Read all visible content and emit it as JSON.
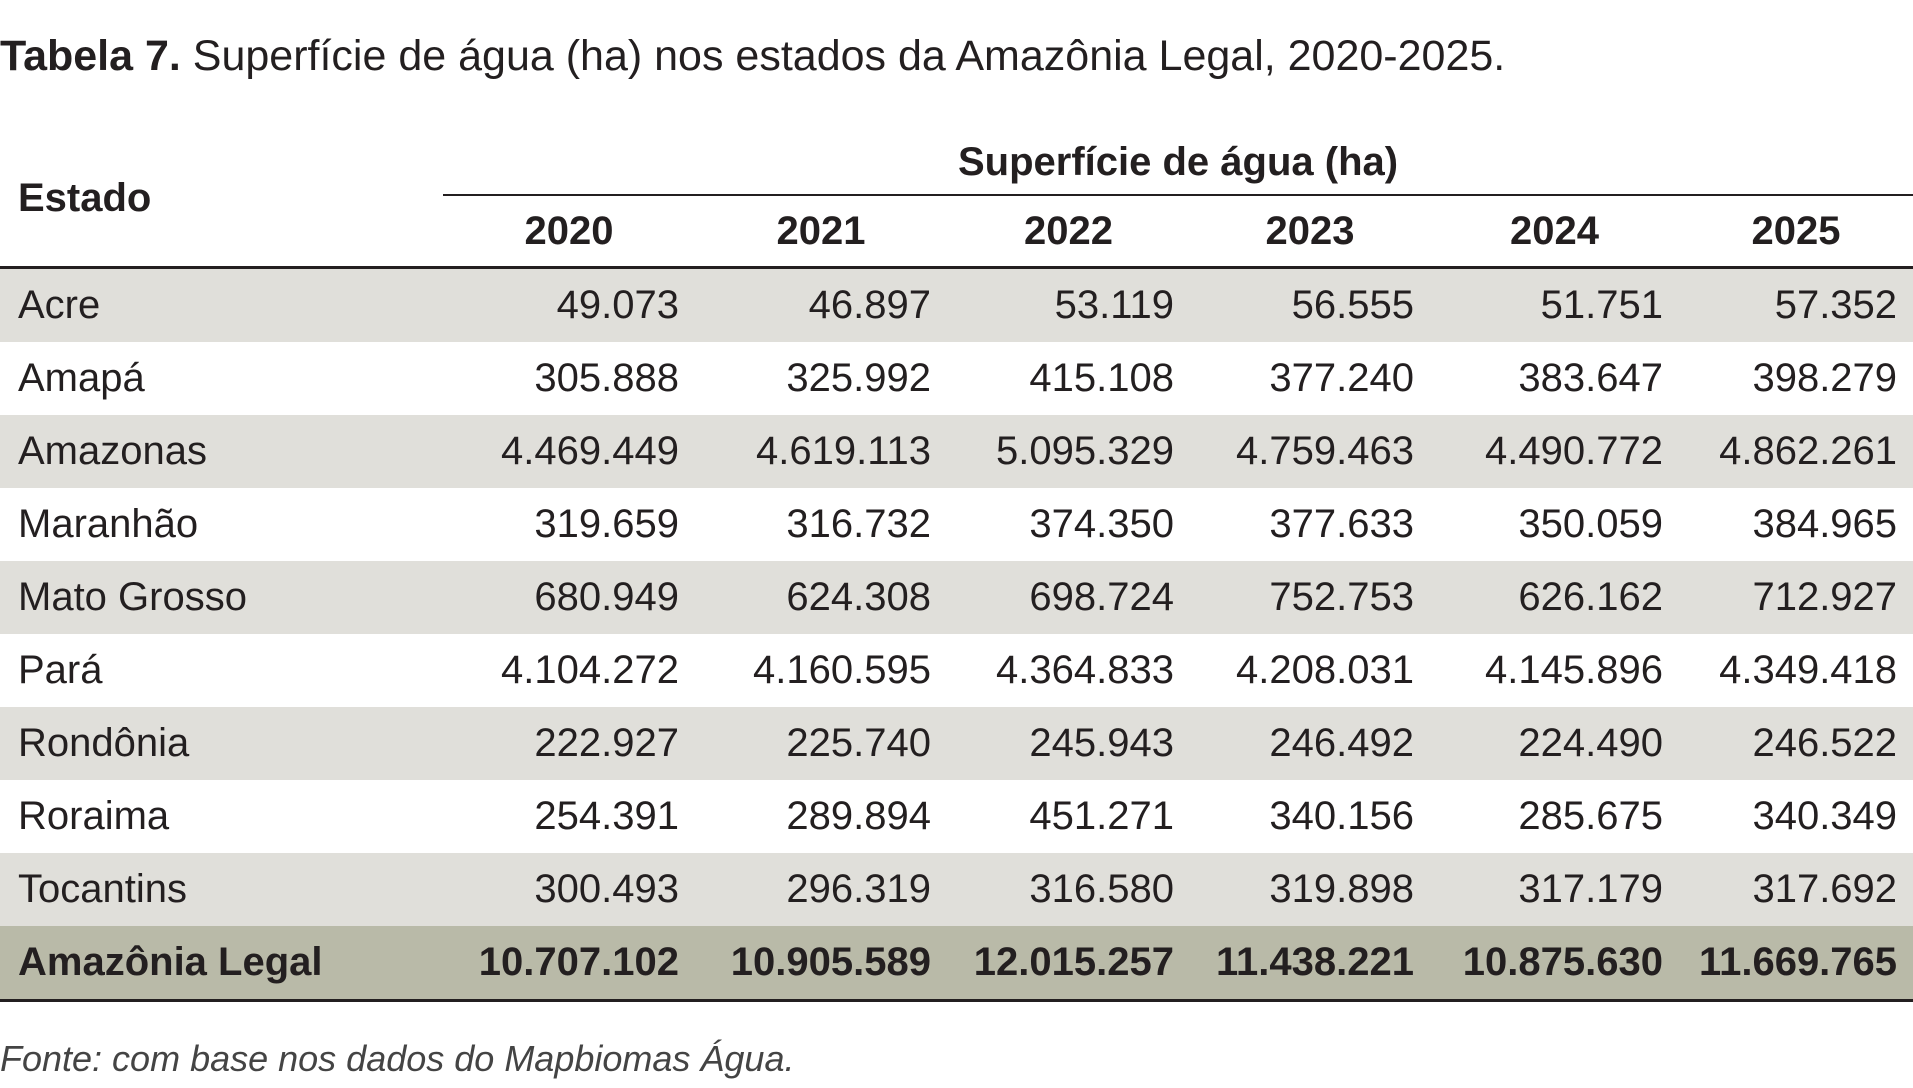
{
  "caption": {
    "label": "Tabela 7.",
    "text": "Superfície de água (ha) nos estados da Amazônia Legal, 2020-2025."
  },
  "table": {
    "state_header": "Estado",
    "group_header": "Superfície de água (ha)",
    "years": [
      "2020",
      "2021",
      "2022",
      "2023",
      "2024",
      "2025"
    ],
    "rows": [
      {
        "state": "Acre",
        "values": [
          "49.073",
          "46.897",
          "53.119",
          "56.555",
          "51.751",
          "57.352"
        ]
      },
      {
        "state": "Amapá",
        "values": [
          "305.888",
          "325.992",
          "415.108",
          "377.240",
          "383.647",
          "398.279"
        ]
      },
      {
        "state": "Amazonas",
        "values": [
          "4.469.449",
          "4.619.113",
          "5.095.329",
          "4.759.463",
          "4.490.772",
          "4.862.261"
        ]
      },
      {
        "state": "Maranhão",
        "values": [
          "319.659",
          "316.732",
          "374.350",
          "377.633",
          "350.059",
          "384.965"
        ]
      },
      {
        "state": "Mato Grosso",
        "values": [
          "680.949",
          "624.308",
          "698.724",
          "752.753",
          "626.162",
          "712.927"
        ]
      },
      {
        "state": "Pará",
        "values": [
          "4.104.272",
          "4.160.595",
          "4.364.833",
          "4.208.031",
          "4.145.896",
          "4.349.418"
        ]
      },
      {
        "state": "Rondônia",
        "values": [
          "222.927",
          "225.740",
          "245.943",
          "246.492",
          "224.490",
          "246.522"
        ]
      },
      {
        "state": "Roraima",
        "values": [
          "254.391",
          "289.894",
          "451.271",
          "340.156",
          "285.675",
          "340.349"
        ]
      },
      {
        "state": "Tocantins",
        "values": [
          "300.493",
          "296.319",
          "316.580",
          "319.898",
          "317.179",
          "317.692"
        ]
      }
    ],
    "total": {
      "state": "Amazônia Legal",
      "values": [
        "10.707.102",
        "10.905.589",
        "12.015.257",
        "11.438.221",
        "10.875.630",
        "11.669.765"
      ]
    }
  },
  "source": "Fonte: com base nos dados do Mapbiomas Água.",
  "colors": {
    "stripe": "#e0dfda",
    "total_row": "#b9baa8",
    "text": "#231f20"
  }
}
